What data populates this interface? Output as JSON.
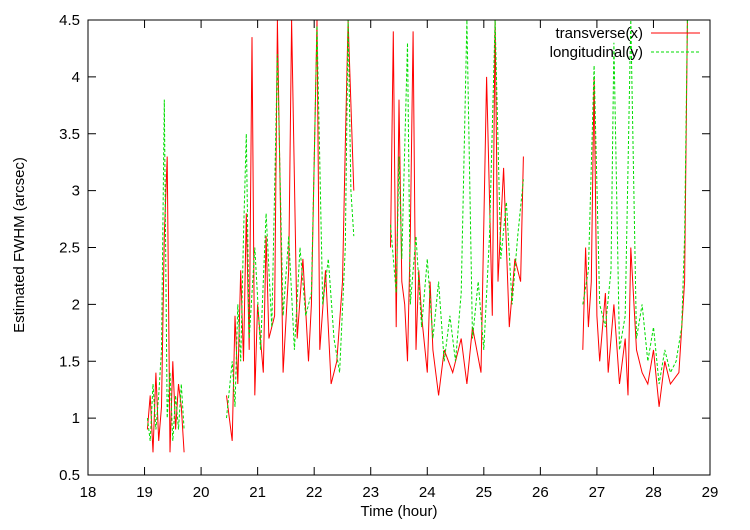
{
  "chart_data": {
    "type": "line",
    "title": "",
    "xlabel": "Time (hour)",
    "ylabel": "Estimated FWHM (arcsec)",
    "xlim": [
      18,
      29
    ],
    "ylim": [
      0.5,
      4.5
    ],
    "xticks": [
      "18",
      "19",
      "20",
      "21",
      "22",
      "23",
      "24",
      "25",
      "26",
      "27",
      "28",
      "29"
    ],
    "yticks": [
      "0.5",
      "1",
      "1.5",
      "2",
      "2.5",
      "3",
      "3.5",
      "4",
      "4.5"
    ],
    "grid": false,
    "legend_position": "top-right",
    "series": [
      {
        "name": "transverse(x)",
        "color": "#ff0000",
        "segments": [
          [
            [
              19.05,
              0.9
            ],
            [
              19.1,
              1.2
            ],
            [
              19.15,
              0.7
            ],
            [
              19.2,
              1.4
            ],
            [
              19.25,
              0.8
            ],
            [
              19.3,
              1.1
            ],
            [
              19.35,
              2.6
            ],
            [
              19.4,
              3.3
            ],
            [
              19.45,
              0.7
            ],
            [
              19.5,
              1.5
            ],
            [
              19.55,
              0.9
            ],
            [
              19.6,
              1.3
            ],
            [
              19.65,
              1.1
            ],
            [
              19.7,
              0.7
            ]
          ],
          [
            [
              20.45,
              1.2
            ],
            [
              20.55,
              0.8
            ],
            [
              20.6,
              1.9
            ],
            [
              20.65,
              1.3
            ],
            [
              20.7,
              2.3
            ],
            [
              20.75,
              1.5
            ],
            [
              20.8,
              2.8
            ],
            [
              20.85,
              1.6
            ],
            [
              20.9,
              4.35
            ],
            [
              20.95,
              1.2
            ],
            [
              21.0,
              2.0
            ],
            [
              21.1,
              1.4
            ],
            [
              21.15,
              2.6
            ],
            [
              21.2,
              1.7
            ],
            [
              21.3,
              1.9
            ],
            [
              21.35,
              4.5
            ],
            [
              21.45,
              1.4
            ],
            [
              21.55,
              2.3
            ],
            [
              21.6,
              4.5
            ],
            [
              21.7,
              1.7
            ],
            [
              21.8,
              2.4
            ],
            [
              21.9,
              1.5
            ],
            [
              21.95,
              2.0
            ],
            [
              22.05,
              4.5
            ],
            [
              22.1,
              1.6
            ],
            [
              22.2,
              2.3
            ],
            [
              22.3,
              1.3
            ],
            [
              22.4,
              1.5
            ],
            [
              22.5,
              2.2
            ],
            [
              22.55,
              3.4
            ],
            [
              22.6,
              4.5
            ],
            [
              22.7,
              3.0
            ]
          ],
          [
            [
              23.35,
              2.5
            ],
            [
              23.4,
              4.4
            ],
            [
              23.45,
              1.8
            ],
            [
              23.5,
              3.8
            ],
            [
              23.55,
              2.2
            ],
            [
              23.6,
              2.0
            ],
            [
              23.65,
              1.5
            ],
            [
              23.7,
              2.6
            ],
            [
              23.75,
              4.4
            ],
            [
              23.8,
              1.6
            ],
            [
              23.85,
              2.3
            ],
            [
              23.9,
              1.9
            ],
            [
              24.0,
              1.4
            ],
            [
              24.05,
              2.2
            ],
            [
              24.1,
              1.6
            ],
            [
              24.2,
              1.2
            ],
            [
              24.3,
              1.6
            ],
            [
              24.45,
              1.4
            ],
            [
              24.6,
              1.7
            ],
            [
              24.7,
              1.3
            ],
            [
              24.8,
              1.8
            ],
            [
              24.95,
              1.4
            ],
            [
              25.05,
              4.0
            ],
            [
              25.15,
              1.9
            ],
            [
              25.2,
              4.5
            ],
            [
              25.25,
              2.2
            ],
            [
              25.35,
              3.2
            ],
            [
              25.45,
              1.8
            ],
            [
              25.55,
              2.4
            ],
            [
              25.65,
              2.2
            ],
            [
              25.7,
              3.3
            ]
          ],
          [
            [
              26.75,
              1.6
            ],
            [
              26.8,
              2.5
            ],
            [
              26.85,
              1.8
            ],
            [
              26.9,
              2.2
            ],
            [
              26.95,
              4.0
            ],
            [
              27.0,
              1.9
            ],
            [
              27.05,
              1.5
            ],
            [
              27.15,
              2.1
            ],
            [
              27.2,
              1.4
            ],
            [
              27.3,
              2.0
            ],
            [
              27.4,
              1.3
            ],
            [
              27.5,
              1.7
            ],
            [
              27.55,
              1.2
            ],
            [
              27.6,
              2.5
            ],
            [
              27.7,
              1.6
            ],
            [
              27.8,
              1.4
            ],
            [
              27.9,
              1.3
            ],
            [
              28.0,
              1.6
            ],
            [
              28.1,
              1.1
            ],
            [
              28.2,
              1.5
            ],
            [
              28.3,
              1.3
            ],
            [
              28.45,
              1.4
            ],
            [
              28.55,
              2.2
            ],
            [
              28.6,
              4.5
            ]
          ]
        ]
      },
      {
        "name": "longitudinal(y)",
        "color": "#00dd00",
        "segments": [
          [
            [
              19.05,
              1.0
            ],
            [
              19.1,
              0.8
            ],
            [
              19.15,
              1.3
            ],
            [
              19.2,
              0.9
            ],
            [
              19.25,
              1.2
            ],
            [
              19.3,
              1.6
            ],
            [
              19.35,
              3.8
            ],
            [
              19.4,
              1.0
            ],
            [
              19.45,
              1.4
            ],
            [
              19.5,
              0.8
            ],
            [
              19.55,
              1.2
            ],
            [
              19.6,
              0.9
            ],
            [
              19.65,
              1.3
            ],
            [
              19.7,
              0.9
            ]
          ],
          [
            [
              20.45,
              1.0
            ],
            [
              20.55,
              1.5
            ],
            [
              20.6,
              1.1
            ],
            [
              20.65,
              2.0
            ],
            [
              20.7,
              1.5
            ],
            [
              20.75,
              2.6
            ],
            [
              20.8,
              3.5
            ],
            [
              20.85,
              1.7
            ],
            [
              20.95,
              2.5
            ],
            [
              21.05,
              1.6
            ],
            [
              21.15,
              2.8
            ],
            [
              21.25,
              1.8
            ],
            [
              21.35,
              4.2
            ],
            [
              21.45,
              1.9
            ],
            [
              21.55,
              2.6
            ],
            [
              21.65,
              1.6
            ],
            [
              21.75,
              2.5
            ],
            [
              21.85,
              1.9
            ],
            [
              21.95,
              2.1
            ],
            [
              22.05,
              4.45
            ],
            [
              22.15,
              2.0
            ],
            [
              22.25,
              2.4
            ],
            [
              22.35,
              1.7
            ],
            [
              22.45,
              1.4
            ],
            [
              22.55,
              2.5
            ],
            [
              22.6,
              4.5
            ],
            [
              22.65,
              3.0
            ],
            [
              22.7,
              2.6
            ]
          ],
          [
            [
              23.35,
              2.7
            ],
            [
              23.45,
              2.1
            ],
            [
              23.5,
              3.3
            ],
            [
              23.55,
              2.4
            ],
            [
              23.65,
              4.3
            ],
            [
              23.7,
              2.0
            ],
            [
              23.8,
              2.6
            ],
            [
              23.9,
              1.8
            ],
            [
              24.0,
              2.4
            ],
            [
              24.1,
              1.7
            ],
            [
              24.2,
              2.2
            ],
            [
              24.3,
              1.5
            ],
            [
              24.4,
              1.9
            ],
            [
              24.5,
              1.5
            ],
            [
              24.6,
              2.1
            ],
            [
              24.7,
              4.5
            ],
            [
              24.8,
              1.7
            ],
            [
              24.9,
              2.2
            ],
            [
              25.0,
              1.6
            ],
            [
              25.1,
              2.6
            ],
            [
              25.2,
              4.5
            ],
            [
              25.3,
              2.4
            ],
            [
              25.4,
              2.9
            ],
            [
              25.5,
              2.0
            ],
            [
              25.6,
              2.6
            ],
            [
              25.7,
              3.1
            ]
          ],
          [
            [
              26.75,
              2.0
            ],
            [
              26.85,
              2.3
            ],
            [
              26.95,
              4.1
            ],
            [
              27.05,
              2.0
            ],
            [
              27.15,
              1.8
            ],
            [
              27.25,
              2.3
            ],
            [
              27.3,
              4.3
            ],
            [
              27.4,
              1.6
            ],
            [
              27.5,
              1.9
            ],
            [
              27.6,
              4.5
            ],
            [
              27.7,
              1.7
            ],
            [
              27.8,
              2.0
            ],
            [
              27.9,
              1.5
            ],
            [
              28.0,
              1.8
            ],
            [
              28.1,
              1.3
            ],
            [
              28.2,
              1.6
            ],
            [
              28.3,
              1.4
            ],
            [
              28.4,
              1.5
            ],
            [
              28.5,
              1.8
            ],
            [
              28.55,
              2.6
            ],
            [
              28.6,
              4.5
            ]
          ]
        ]
      }
    ]
  }
}
